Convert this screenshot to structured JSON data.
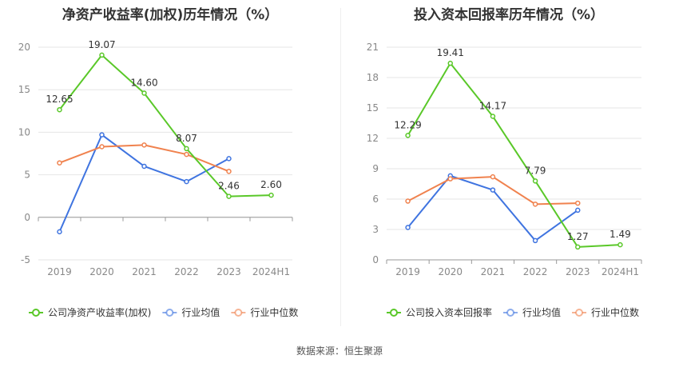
{
  "footer": {
    "source": "数据来源：恒生聚源"
  },
  "colors": {
    "company": "#5ac829",
    "avg": "#3f74e0",
    "median": "#f0824e"
  },
  "chart_data": [
    {
      "type": "line",
      "title": "净资产收益率(加权)历年情况（%）",
      "categories": [
        "2019",
        "2020",
        "2021",
        "2022",
        "2023",
        "2024H1"
      ],
      "ylim": [
        -5,
        20
      ],
      "yticks": [
        -5,
        0,
        5,
        10,
        15,
        20
      ],
      "ytick_labels": [
        "-5",
        "0",
        "5",
        "10",
        "15",
        "20"
      ],
      "grid": true,
      "legend_position": "bottom",
      "series": [
        {
          "name": "公司净资产收益率(加权)",
          "color": "#5ac829",
          "values": [
            12.65,
            19.07,
            14.6,
            8.07,
            2.46,
            2.6
          ],
          "labels": [
            "12.65",
            "19.07",
            "14.60",
            "8.07",
            "2.46",
            "2.60"
          ]
        },
        {
          "name": "行业均值",
          "color": "#3f74e0",
          "values": [
            -1.7,
            9.7,
            6.0,
            4.2,
            6.9,
            null
          ]
        },
        {
          "name": "行业中位数",
          "color": "#f0824e",
          "values": [
            6.4,
            8.3,
            8.5,
            7.4,
            5.4,
            null
          ]
        }
      ]
    },
    {
      "type": "line",
      "title": "投入资本回报率历年情况（%）",
      "categories": [
        "2019",
        "2020",
        "2021",
        "2022",
        "2023",
        "2024H1"
      ],
      "ylim": [
        0,
        21
      ],
      "yticks": [
        0,
        3,
        6,
        9,
        12,
        15,
        18,
        21
      ],
      "ytick_labels": [
        "0",
        "3",
        "6",
        "9",
        "12",
        "15",
        "18",
        "21"
      ],
      "grid": true,
      "legend_position": "bottom",
      "series": [
        {
          "name": "公司投入资本回报率",
          "color": "#5ac829",
          "values": [
            12.29,
            19.41,
            14.17,
            7.79,
            1.27,
            1.49
          ],
          "labels": [
            "12.29",
            "19.41",
            "14.17",
            "7.79",
            "1.27",
            "1.49"
          ]
        },
        {
          "name": "行业均值",
          "color": "#3f74e0",
          "values": [
            3.2,
            8.3,
            6.9,
            1.9,
            4.9,
            null
          ]
        },
        {
          "name": "行业中位数",
          "color": "#f0824e",
          "values": [
            5.8,
            8.0,
            8.2,
            5.5,
            5.6,
            null
          ]
        }
      ]
    }
  ]
}
